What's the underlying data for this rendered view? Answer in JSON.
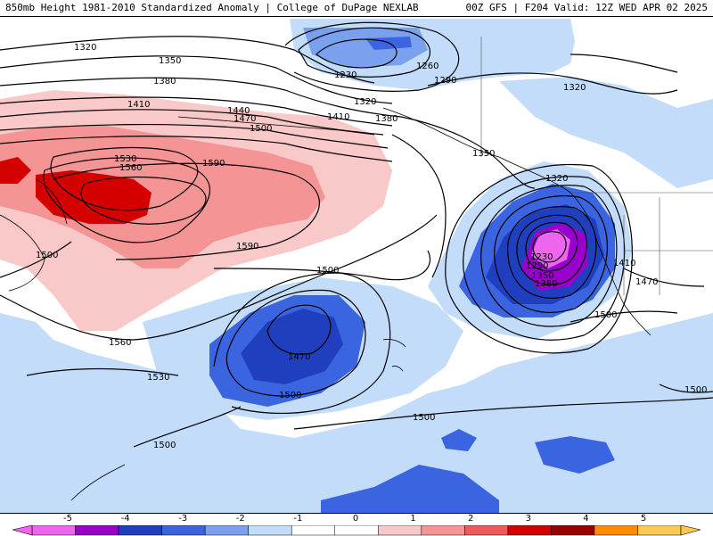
{
  "header": {
    "title": "850mb Height 1981-2010 Standardized Anomaly | College of DuPage NEXLAB",
    "run_info": "00Z GFS | F204 Valid: 12Z WED APR 02 2025"
  },
  "contour_labels": [
    {
      "text": "1320",
      "id": "c1320a"
    },
    {
      "text": "1350",
      "id": "c1350a"
    },
    {
      "text": "1230",
      "id": "c1230"
    },
    {
      "text": "1260",
      "id": "c1260"
    },
    {
      "text": "1290",
      "id": "c1290a"
    },
    {
      "text": "1320",
      "id": "c1320b"
    },
    {
      "text": "1320",
      "id": "c1320c"
    },
    {
      "text": "1380",
      "id": "c1380a"
    },
    {
      "text": "1410",
      "id": "c1410a"
    },
    {
      "text": "1440",
      "id": "c1440"
    },
    {
      "text": "1470",
      "id": "c1470a"
    },
    {
      "text": "1500",
      "id": "c1500a"
    },
    {
      "text": "1410",
      "id": "c1410b"
    },
    {
      "text": "1380",
      "id": "c1380b"
    },
    {
      "text": "1350",
      "id": "c1350b"
    },
    {
      "text": "1530",
      "id": "c1530a"
    },
    {
      "text": "1560",
      "id": "c1560a"
    },
    {
      "text": "1590",
      "id": "c1590a"
    },
    {
      "text": "1590",
      "id": "c1590b"
    },
    {
      "text": "1320",
      "id": "c1320d"
    },
    {
      "text": "1500",
      "id": "c1500b"
    },
    {
      "text": "1560",
      "id": "c1560b"
    },
    {
      "text": "1500",
      "id": "c1500c"
    },
    {
      "text": "1470",
      "id": "c1470b"
    },
    {
      "text": "1530",
      "id": "c1530b"
    },
    {
      "text": "1500",
      "id": "c1500d"
    },
    {
      "text": "1500",
      "id": "c1500e"
    },
    {
      "text": "1500",
      "id": "c1500f"
    },
    {
      "text": "1230",
      "id": "c1230b"
    },
    {
      "text": "1290",
      "id": "c1290b"
    },
    {
      "text": "1350",
      "id": "c1350c"
    },
    {
      "text": "1380",
      "id": "c1380c"
    },
    {
      "text": "1410",
      "id": "c1410c"
    },
    {
      "text": "1470",
      "id": "c1470c"
    },
    {
      "text": "1500",
      "id": "c1500g"
    },
    {
      "text": "1500",
      "id": "c1500h"
    }
  ],
  "colorbar": {
    "ticks": [
      "-5",
      "-4",
      "-3",
      "-2",
      "-1",
      "0",
      "1",
      "2",
      "3",
      "4",
      "5"
    ],
    "colors": [
      "#ee66ee",
      "#9900cc",
      "#1f3fbf",
      "#3a64e0",
      "#7aa0ee",
      "#c2dcfa",
      "#ffffff",
      "#ffffff",
      "#f9c8c8",
      "#f49494",
      "#f05a5a",
      "#d40000",
      "#9a0000",
      "#ff8c00",
      "#ffc850"
    ]
  }
}
